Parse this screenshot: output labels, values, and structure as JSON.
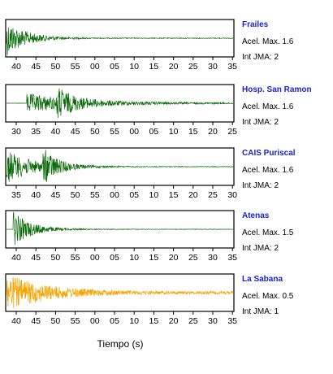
{
  "chart_data": {
    "type": "line",
    "xlabel": "Tiempo (s)",
    "panels": [
      {
        "station": "Frailes",
        "accel": "Acel. Max. 1.6",
        "jma": "Int JMA: 2",
        "color": "#0b6b0b",
        "ticks": [
          "40",
          "45",
          "50",
          "55",
          "00",
          "05",
          "10",
          "15",
          "20",
          "25",
          "30",
          "35"
        ],
        "signal": {
          "onset": 0.0,
          "peak": 1.0,
          "decay": 0.09,
          "noise": 0.06
        }
      },
      {
        "station": "Hosp. San Ramon",
        "accel": "Acel. Max. 1.6",
        "jma": "Int JMA: 2",
        "color": "#0b6b0b",
        "ticks": [
          "30",
          "35",
          "40",
          "45",
          "50",
          "55",
          "00",
          "05",
          "10",
          "15",
          "20",
          "25"
        ],
        "signal": {
          "onset": 0.09,
          "peak": 0.55,
          "decay": 0.25,
          "noise": 0.08,
          "burst": 0.22,
          "burstAmp": 0.8
        }
      },
      {
        "station": "CAIS Puriscal",
        "accel": "Acel. Max. 1.6",
        "jma": "Int JMA: 2",
        "color": "#0b6b0b",
        "ticks": [
          "35",
          "40",
          "45",
          "50",
          "55",
          "00",
          "05",
          "10",
          "15",
          "20",
          "25",
          "30"
        ],
        "signal": {
          "onset": 0.0,
          "peak": 0.95,
          "decay": 0.12,
          "noise": 0.05,
          "burst": 0.16,
          "burstAmp": 1.0
        }
      },
      {
        "station": "Atenas",
        "accel": "Acel. Max. 1.5",
        "jma": "Int JMA: 2",
        "color": "#0b6b0b",
        "ticks": [
          "40",
          "45",
          "50",
          "55",
          "00",
          "05",
          "10",
          "15",
          "20",
          "25",
          "30",
          "35"
        ],
        "signal": {
          "onset": 0.03,
          "peak": 1.0,
          "decay": 0.08,
          "noise": 0.04
        }
      },
      {
        "station": "La Sabana",
        "accel": "Acel. Max. 0.5",
        "jma": "Int JMA: 1",
        "color": "#f5a400",
        "ticks": [
          "40",
          "45",
          "50",
          "55",
          "00",
          "05",
          "10",
          "15",
          "20",
          "25",
          "30",
          "35"
        ],
        "signal": {
          "onset": 0.0,
          "peak": 1.0,
          "decay": 0.18,
          "noise": 0.22
        }
      }
    ]
  }
}
